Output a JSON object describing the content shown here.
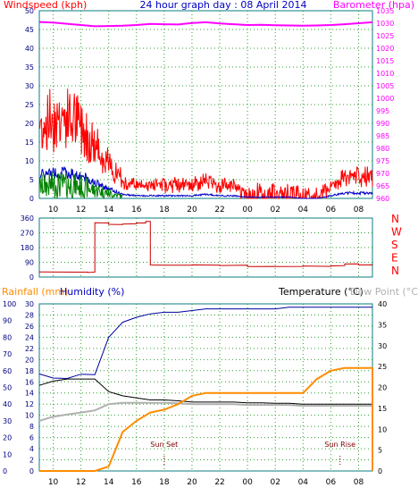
{
  "title": "24 hour graph day : 08 April 2014",
  "colors": {
    "frame": "#0d7d80",
    "grid": "#2e9e2e",
    "wind": "#ff0000",
    "wind_avg": "#0000c8",
    "wind_low": "#008000",
    "baro": "#ff00ff",
    "dir": "#c80000",
    "rain": "#ff8c00",
    "humidity": "#0000a0",
    "temp": "#000000",
    "dew": "#b0b0b0",
    "sun": "#800000",
    "label_wind": "#ff0000",
    "label_baro": "#ff00ff",
    "label_hum": "#0000c0",
    "label_rain": "#ff8c00",
    "label_temp": "#000000",
    "label_dew": "#b0b0b0",
    "label_title": "#0000c0",
    "tick_left": "#000080",
    "tick_right": "#ff00ff",
    "compass": "#ff0000"
  },
  "time_ticks": [
    "10",
    "12",
    "14",
    "16",
    "18",
    "20",
    "22",
    "00",
    "02",
    "04",
    "06",
    "08"
  ],
  "chart_data": [
    {
      "type": "line",
      "title": "24 hour graph day : 08 April 2014",
      "ylabel": "Windspeed (kph)",
      "y2label": "Barometer (hpa)",
      "ylim": [
        0,
        50
      ],
      "y2lim": [
        960,
        1035
      ],
      "yticks": [
        0,
        5,
        10,
        15,
        20,
        25,
        30,
        35,
        40,
        45,
        50
      ],
      "y2ticks": [
        960,
        965,
        970,
        975,
        980,
        985,
        990,
        995,
        1000,
        1005,
        1010,
        1015,
        1020,
        1025,
        1030,
        1035
      ],
      "x": [
        "09:00",
        "10:00",
        "11:00",
        "12:00",
        "13:00",
        "14:00",
        "15:00",
        "16:00",
        "17:00",
        "18:00",
        "19:00",
        "20:00",
        "21:00",
        "22:00",
        "23:00",
        "00:00",
        "01:00",
        "02:00",
        "03:00",
        "04:00",
        "05:00",
        "06:00",
        "07:00",
        "08:00",
        "09:00"
      ],
      "series": [
        {
          "name": "Windspeed (kph)",
          "values": [
            17,
            19,
            19,
            17,
            12,
            7,
            3,
            2,
            2,
            2,
            2,
            2,
            3,
            2,
            2,
            1,
            1,
            1,
            1,
            0,
            0,
            2,
            4,
            4,
            4
          ]
        },
        {
          "name": "Barometer (hpa)",
          "axis": "right",
          "values": [
            1030.5,
            1030.3,
            1029.8,
            1029.3,
            1028.8,
            1028.9,
            1029.0,
            1029.3,
            1029.7,
            1029.6,
            1029.5,
            1030.1,
            1030.4,
            1029.9,
            1029.6,
            1029.3,
            1029.4,
            1029.2,
            1029.1,
            1029.0,
            1029.1,
            1029.3,
            1029.6,
            1030.0,
            1030.4
          ]
        }
      ]
    },
    {
      "type": "line",
      "ylabel": "Wind direction",
      "ylim": [
        0,
        360
      ],
      "yticks": [
        0,
        90,
        180,
        270,
        360
      ],
      "compass": [
        "N",
        "W",
        "S",
        "E",
        "N"
      ],
      "x": [
        "09:00",
        "11:30",
        "12:30",
        "13:00",
        "14:00",
        "15:00",
        "16:00",
        "16:40",
        "17:00",
        "18:00",
        "20:00",
        "22:00",
        "00:00",
        "02:00",
        "04:00",
        "06:00",
        "07:00",
        "08:00",
        "09:00"
      ],
      "series": [
        {
          "name": "Direction",
          "values": [
            30,
            30,
            30,
            330,
            320,
            325,
            330,
            340,
            72,
            72,
            72,
            72,
            65,
            65,
            65,
            70,
            80,
            75,
            72
          ]
        }
      ]
    },
    {
      "type": "line",
      "ylabel": "Rainfall (mm)",
      "y2label": "Temperature (°C)",
      "ylim": [
        0,
        30
      ],
      "humlim": [
        0,
        100
      ],
      "y2lim": [
        0,
        40
      ],
      "yticks": [
        0,
        2,
        4,
        6,
        8,
        10,
        12,
        14,
        16,
        18,
        20,
        22,
        24,
        26,
        28,
        30
      ],
      "humticks": [
        0,
        10,
        20,
        30,
        40,
        50,
        60,
        70,
        80,
        90,
        100
      ],
      "y2ticks": [
        0,
        5,
        10,
        15,
        20,
        25,
        30,
        35,
        40
      ],
      "labels": {
        "humidity": "Humidity (%)",
        "dew": "Dew Point (°C)",
        "sunset": "Sun Set",
        "sunrise": "Sun Rise"
      },
      "x": [
        "09:00",
        "10:00",
        "11:00",
        "12:00",
        "13:00",
        "14:00",
        "15:00",
        "16:00",
        "17:00",
        "18:00",
        "19:00",
        "20:00",
        "21:00",
        "22:00",
        "23:00",
        "00:00",
        "01:00",
        "02:00",
        "03:00",
        "04:00",
        "05:00",
        "06:00",
        "07:00",
        "08:00",
        "09:00"
      ],
      "series": [
        {
          "name": "Rainfall (mm)",
          "values": [
            0,
            0,
            0,
            0,
            0,
            0.8,
            7,
            9,
            10.5,
            11,
            12,
            13.5,
            14,
            14,
            14,
            14,
            14,
            14,
            14,
            14,
            16.5,
            18,
            18.5,
            18.5,
            18.5
          ]
        },
        {
          "name": "Humidity (%)",
          "values": [
            58,
            55,
            55,
            57,
            57,
            80,
            89,
            92,
            94,
            95,
            95,
            96,
            97,
            97,
            97,
            97,
            97,
            97,
            98,
            98,
            98,
            98,
            98,
            98,
            98
          ]
        },
        {
          "name": "Temperature (°C)",
          "values": [
            20.5,
            21.5,
            22,
            22,
            22,
            19,
            18,
            17.5,
            17,
            17,
            16.8,
            16.5,
            16.5,
            16.5,
            16.5,
            16.3,
            16.3,
            16.2,
            16.2,
            16,
            16,
            16,
            16,
            16,
            16
          ]
        },
        {
          "name": "Dew Point (°C)",
          "values": [
            12,
            13,
            13.5,
            14,
            14.5,
            16,
            16.3,
            16.3,
            16.3,
            16.3,
            16.2,
            16,
            16,
            16,
            16,
            15.8,
            15.8,
            15.8,
            15.8,
            15.6,
            15.6,
            15.6,
            15.6,
            15.6,
            15.6
          ]
        }
      ]
    }
  ]
}
